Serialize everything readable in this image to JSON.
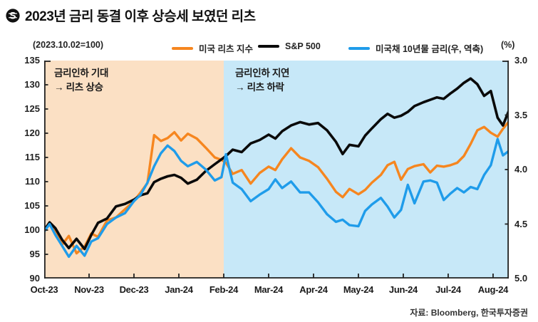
{
  "title": "2023년 금리 동결 이후 상승세 보였던 리츠",
  "title_icon": "dollar-circle-logo",
  "header": {
    "base_note": "(2023.10.02=100)",
    "right_unit": "(%)"
  },
  "legend": [
    {
      "label": "미국 리츠 지수",
      "color": "#F6861F"
    },
    {
      "label": "S&P 500",
      "color": "#0a0a0a"
    },
    {
      "label": "미국채 10년물 금리(우, 역축)",
      "color": "#1F9CEA"
    }
  ],
  "source": "자료: Bloomberg, 한국투자증권",
  "chart_data": {
    "type": "line",
    "x_unit": "months since Oct-2023 tick",
    "x_tick_labels": [
      "Oct-23",
      "Nov-23",
      "Dec-23",
      "Jan-24",
      "Feb-24",
      "Mar-24",
      "Apr-24",
      "May-24",
      "Jun-24",
      "Jul-24",
      "Aug-24"
    ],
    "x_range": [
      0,
      10.35
    ],
    "left_axis": {
      "min": 90,
      "max": 135,
      "step": 5
    },
    "right_axis": {
      "min": 3.0,
      "max": 5.0,
      "step": 0.5,
      "inverted": true,
      "unit": "%"
    },
    "grid": false,
    "legend_position": "top",
    "regions": [
      {
        "from": 0,
        "to": 4,
        "color": "#FBE0C4",
        "label_line1": "금리인하 기대",
        "label_line2": "→ 리츠 상승"
      },
      {
        "from": 4,
        "to": 10.35,
        "color": "#C7E8F8",
        "label_line1": "금리인하 지연",
        "label_line2": "→ 리츠 하락"
      }
    ],
    "x": [
      0,
      0.12,
      0.25,
      0.4,
      0.55,
      0.72,
      0.9,
      1.05,
      1.2,
      1.4,
      1.6,
      1.8,
      2.0,
      2.15,
      2.3,
      2.45,
      2.6,
      2.75,
      2.9,
      3.05,
      3.2,
      3.4,
      3.6,
      3.8,
      3.95,
      4.05,
      4.2,
      4.4,
      4.6,
      4.8,
      5.0,
      5.15,
      5.3,
      5.5,
      5.7,
      5.9,
      6.1,
      6.3,
      6.5,
      6.65,
      6.8,
      7.0,
      7.15,
      7.3,
      7.5,
      7.65,
      7.8,
      7.95,
      8.1,
      8.25,
      8.45,
      8.6,
      8.75,
      8.9,
      9.05,
      9.2,
      9.35,
      9.5,
      9.65,
      9.8,
      9.95,
      10.1,
      10.22,
      10.35
    ],
    "series": [
      {
        "name": "미국 리츠 지수",
        "axis": "left",
        "color": "#F6861F",
        "width": 3.4,
        "values": [
          100,
          101.2,
          99.6,
          97.0,
          98.8,
          95.2,
          96.6,
          99.3,
          98.6,
          102.0,
          102.6,
          104.3,
          106.0,
          107.8,
          109.7,
          119.6,
          118.4,
          119.0,
          120.2,
          118.5,
          119.9,
          118.9,
          117.0,
          115.0,
          114.5,
          113.9,
          111.6,
          112.4,
          109.6,
          111.8,
          113.1,
          112.4,
          114.6,
          116.9,
          115.0,
          114.3,
          113.0,
          110.6,
          107.9,
          106.8,
          108.5,
          107.4,
          108.3,
          109.8,
          111.4,
          113.4,
          114.1,
          110.4,
          112.6,
          113.2,
          113.6,
          111.9,
          113.3,
          113.1,
          113.4,
          113.9,
          115.3,
          117.8,
          120.6,
          121.3,
          120.1,
          119.3,
          120.9,
          122.4
        ]
      },
      {
        "name": "S&P 500",
        "axis": "left",
        "color": "#0a0a0a",
        "width": 3.6,
        "values": [
          100,
          101.6,
          100.4,
          98.0,
          96.3,
          98.2,
          96.1,
          99.0,
          101.5,
          102.4,
          104.9,
          105.4,
          106.3,
          107.2,
          107.6,
          109.9,
          110.6,
          111.1,
          111.4,
          110.8,
          109.6,
          110.4,
          112.2,
          113.6,
          114.6,
          115.3,
          116.6,
          116.1,
          117.9,
          118.6,
          119.7,
          118.9,
          120.4,
          121.6,
          122.3,
          121.8,
          122.1,
          120.6,
          118.2,
          115.7,
          117.6,
          117.3,
          119.5,
          121.0,
          122.9,
          124.0,
          123.2,
          123.6,
          124.4,
          125.6,
          126.4,
          126.9,
          127.4,
          127.1,
          128.2,
          129.2,
          130.4,
          131.3,
          130.1,
          127.7,
          128.7,
          123.2,
          121.6,
          124.6
        ]
      },
      {
        "name": "미국채 10년물 금리(우, 역축)",
        "axis": "right",
        "color": "#1F9CEA",
        "width": 3.4,
        "values": [
          4.57,
          4.5,
          4.6,
          4.7,
          4.8,
          4.7,
          4.79,
          4.66,
          4.63,
          4.5,
          4.44,
          4.4,
          4.29,
          4.23,
          4.12,
          3.97,
          3.85,
          3.78,
          3.83,
          3.92,
          3.97,
          3.93,
          4.0,
          4.1,
          4.07,
          3.86,
          4.12,
          4.18,
          4.29,
          4.23,
          4.18,
          4.09,
          4.17,
          4.11,
          4.21,
          4.21,
          4.3,
          4.41,
          4.48,
          4.46,
          4.51,
          4.52,
          4.38,
          4.32,
          4.26,
          4.34,
          4.44,
          4.37,
          4.14,
          4.31,
          4.11,
          4.1,
          4.12,
          4.28,
          4.22,
          4.17,
          4.21,
          4.16,
          4.18,
          4.05,
          3.96,
          3.72,
          3.87,
          3.83
        ]
      }
    ]
  }
}
